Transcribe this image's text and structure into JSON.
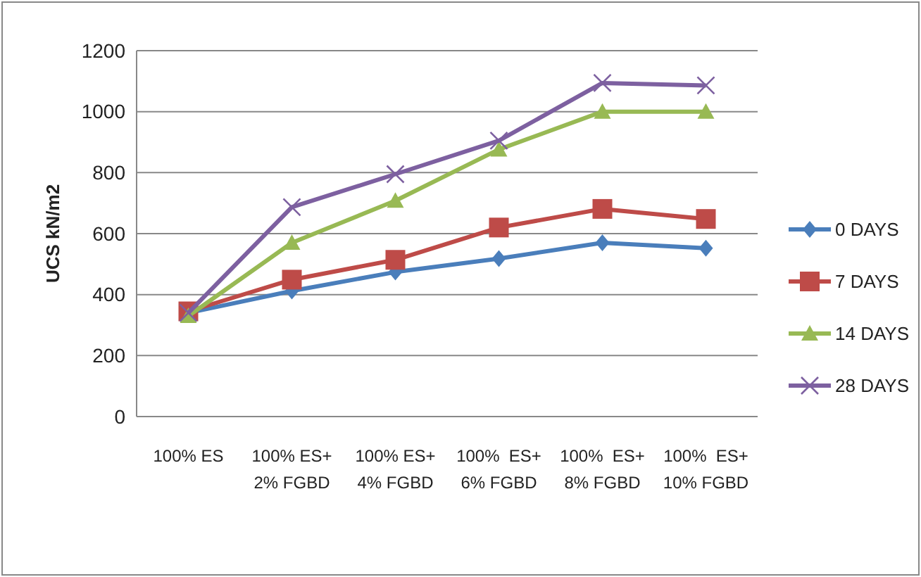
{
  "chart_data": {
    "type": "line",
    "ylabel": "UCS kN/m2",
    "categories": [
      "100% ES",
      "100% ES+\n2% FGBD",
      "100% ES+\n4% FGBD",
      "100%  ES+\n6% FGBD",
      "100%  ES+\n8% FGBD",
      "100%  ES+\n10% FGBD"
    ],
    "ylim": [
      0,
      1200
    ],
    "yticks": [
      0,
      200,
      400,
      600,
      800,
      1000,
      1200
    ],
    "grid": "y",
    "legend": "right",
    "series": [
      {
        "name": "0 DAYS",
        "color": "#4a7ebb",
        "marker": "diamond",
        "values": [
          340,
          412,
          474,
          518,
          570,
          552
        ]
      },
      {
        "name": "7 DAYS",
        "color": "#be4b48",
        "marker": "square",
        "values": [
          345,
          449,
          514,
          620,
          681,
          648
        ]
      },
      {
        "name": "14 DAYS",
        "color": "#98b954",
        "marker": "triangle",
        "values": [
          330,
          570,
          708,
          876,
          1000,
          1000
        ]
      },
      {
        "name": "28 DAYS",
        "color": "#7d60a0",
        "marker": "cross",
        "values": [
          340,
          687,
          795,
          905,
          1094,
          1086
        ]
      }
    ]
  }
}
